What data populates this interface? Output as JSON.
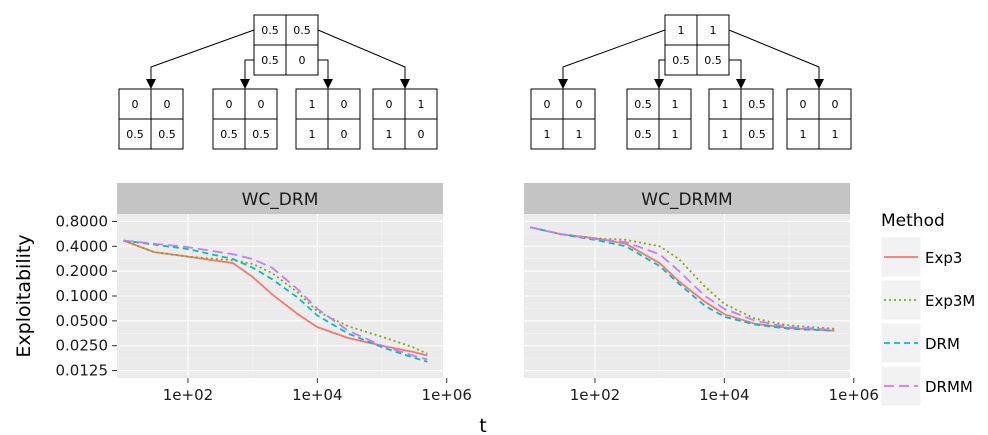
{
  "trees": [
    {
      "root": [
        [
          "0.5",
          "0.5"
        ],
        [
          "0.5",
          "0"
        ]
      ],
      "children": [
        [
          [
            "0",
            "0"
          ],
          [
            "0.5",
            "0.5"
          ]
        ],
        [
          [
            "0",
            "0"
          ],
          [
            "0.5",
            "0.5"
          ]
        ],
        [
          [
            "1",
            "0"
          ],
          [
            "1",
            "0"
          ]
        ],
        [
          [
            "0",
            "1"
          ],
          [
            "1",
            "0"
          ]
        ]
      ]
    },
    {
      "root": [
        [
          "1",
          "1"
        ],
        [
          "0.5",
          "0.5"
        ]
      ],
      "children": [
        [
          [
            "0",
            "0"
          ],
          [
            "1",
            "1"
          ]
        ],
        [
          [
            "0.5",
            "1"
          ],
          [
            "0.5",
            "1"
          ]
        ],
        [
          [
            "1",
            "0.5"
          ],
          [
            "1",
            "0.5"
          ]
        ],
        [
          [
            "0",
            "0"
          ],
          [
            "1",
            "1"
          ]
        ]
      ]
    }
  ],
  "chart_data": {
    "type": "line",
    "xlabel": "t",
    "ylabel": "Exploitability",
    "x_scale": "log10",
    "y_scale": "log",
    "xlim": [
      10,
      700000
    ],
    "ylim": [
      0.0125,
      0.8
    ],
    "x_ticks": [
      100,
      10000,
      1000000
    ],
    "x_tick_labels": [
      "1e+02",
      "1e+04",
      "1e+06"
    ],
    "y_ticks": [
      0.0125,
      0.025,
      0.05,
      0.1,
      0.2,
      0.4,
      0.8
    ],
    "y_tick_labels": [
      "0.0125",
      "0.0250",
      "0.0500",
      "0.1000",
      "0.2000",
      "0.4000",
      "0.8000"
    ],
    "grid": true,
    "legend": {
      "title": "Method",
      "position": "right",
      "entries": [
        {
          "name": "Exp3",
          "color": "#F8766D",
          "dash": "solid"
        },
        {
          "name": "Exp3M",
          "color": "#7CAE00",
          "dash": "dotted"
        },
        {
          "name": "DRM",
          "color": "#00BFC4",
          "dash": "dashed"
        },
        {
          "name": "DRMM",
          "color": "#C77CFF",
          "dash": "longdash"
        }
      ]
    },
    "panels": [
      {
        "title": "WC_DRM",
        "series": [
          {
            "name": "Exp3",
            "points": [
              [
                10,
                0.47
              ],
              [
                30,
                0.34
              ],
              [
                100,
                0.3
              ],
              [
                500,
                0.25
              ],
              [
                1000,
                0.17
              ],
              [
                2000,
                0.105
              ],
              [
                5000,
                0.06
              ],
              [
                10000,
                0.042
              ],
              [
                30000,
                0.031
              ],
              [
                100000,
                0.025
              ],
              [
                300000,
                0.021
              ],
              [
                500000,
                0.019
              ]
            ]
          },
          {
            "name": "Exp3M",
            "points": [
              [
                10,
                0.47
              ],
              [
                30,
                0.34
              ],
              [
                100,
                0.3
              ],
              [
                500,
                0.27
              ],
              [
                1000,
                0.245
              ],
              [
                2000,
                0.19
              ],
              [
                5000,
                0.11
              ],
              [
                10000,
                0.065
              ],
              [
                30000,
                0.043
              ],
              [
                100000,
                0.032
              ],
              [
                300000,
                0.024
              ],
              [
                500000,
                0.02
              ]
            ]
          },
          {
            "name": "DRM",
            "points": [
              [
                10,
                0.47
              ],
              [
                100,
                0.37
              ],
              [
                500,
                0.28
              ],
              [
                1000,
                0.22
              ],
              [
                2000,
                0.16
              ],
              [
                5000,
                0.095
              ],
              [
                10000,
                0.058
              ],
              [
                30000,
                0.035
              ],
              [
                100000,
                0.024
              ],
              [
                300000,
                0.018
              ],
              [
                500000,
                0.016
              ]
            ]
          },
          {
            "name": "DRMM",
            "points": [
              [
                10,
                0.47
              ],
              [
                100,
                0.39
              ],
              [
                500,
                0.32
              ],
              [
                1000,
                0.28
              ],
              [
                2000,
                0.22
              ],
              [
                5000,
                0.12
              ],
              [
                10000,
                0.07
              ],
              [
                30000,
                0.038
              ],
              [
                100000,
                0.025
              ],
              [
                300000,
                0.019
              ],
              [
                500000,
                0.017
              ]
            ]
          }
        ]
      },
      {
        "title": "WC_DRMM",
        "series": [
          {
            "name": "Exp3",
            "points": [
              [
                10,
                0.68
              ],
              [
                30,
                0.56
              ],
              [
                100,
                0.5
              ],
              [
                300,
                0.43
              ],
              [
                1000,
                0.25
              ],
              [
                2000,
                0.15
              ],
              [
                5000,
                0.085
              ],
              [
                10000,
                0.06
              ],
              [
                30000,
                0.046
              ],
              [
                100000,
                0.041
              ],
              [
                500000,
                0.038
              ]
            ]
          },
          {
            "name": "Exp3M",
            "points": [
              [
                10,
                0.68
              ],
              [
                30,
                0.56
              ],
              [
                100,
                0.5
              ],
              [
                300,
                0.48
              ],
              [
                1000,
                0.4
              ],
              [
                2000,
                0.28
              ],
              [
                5000,
                0.13
              ],
              [
                10000,
                0.08
              ],
              [
                30000,
                0.053
              ],
              [
                100000,
                0.044
              ],
              [
                500000,
                0.04
              ]
            ]
          },
          {
            "name": "DRM",
            "points": [
              [
                10,
                0.68
              ],
              [
                30,
                0.56
              ],
              [
                100,
                0.48
              ],
              [
                300,
                0.4
              ],
              [
                1000,
                0.23
              ],
              [
                2000,
                0.14
              ],
              [
                5000,
                0.076
              ],
              [
                10000,
                0.056
              ],
              [
                30000,
                0.045
              ],
              [
                100000,
                0.04
              ],
              [
                500000,
                0.038
              ]
            ]
          },
          {
            "name": "DRMM",
            "points": [
              [
                10,
                0.68
              ],
              [
                30,
                0.56
              ],
              [
                100,
                0.49
              ],
              [
                300,
                0.45
              ],
              [
                1000,
                0.32
              ],
              [
                2000,
                0.2
              ],
              [
                5000,
                0.1
              ],
              [
                10000,
                0.07
              ],
              [
                30000,
                0.05
              ],
              [
                100000,
                0.042
              ],
              [
                500000,
                0.039
              ]
            ]
          }
        ]
      }
    ]
  }
}
